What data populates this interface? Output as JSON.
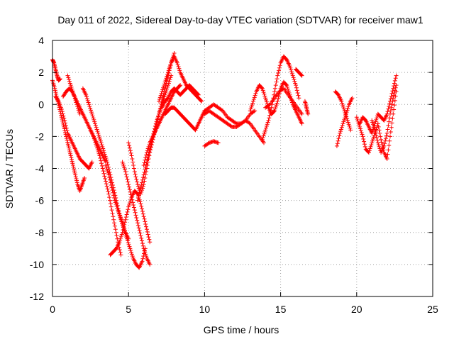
{
  "chart_data": {
    "type": "scatter",
    "title": "Day 011 of 2022, Sidereal Day-to-day VTEC variation (SDTVAR) for receiver maw1",
    "xlabel": "GPS time / hours",
    "ylabel": "SDTVAR / TECUs",
    "xlim": [
      0,
      25
    ],
    "ylim": [
      -12,
      4
    ],
    "grid": true,
    "grid_style": "dotted",
    "marker": "plus",
    "x_ticks": [
      0,
      5,
      10,
      15,
      20,
      25
    ],
    "x_tick_labels": [
      "0",
      "5",
      "10",
      "15",
      "20",
      "25"
    ],
    "y_ticks": [
      4,
      2,
      0,
      -2,
      -4,
      -6,
      -8,
      -10,
      -12
    ],
    "y_tick_labels": [
      "4",
      "2",
      "0",
      "-2",
      "-4",
      "-6",
      "-8",
      "-10",
      "-12"
    ],
    "series": [
      {
        "name": "SDTVAR",
        "color": "#ff0000",
        "tracks": [
          {
            "x": [
              0.0,
              0.1,
              0.2,
              0.3,
              0.4,
              0.5
            ],
            "y": [
              2.8,
              2.6,
              2.2,
              1.8,
              1.5,
              1.6
            ]
          },
          {
            "x": [
              0.0,
              0.15,
              0.3,
              0.45,
              0.6,
              0.75,
              0.9,
              1.05,
              1.2,
              1.35,
              1.5,
              1.65,
              1.8,
              1.95,
              2.1
            ],
            "y": [
              1.5,
              1.0,
              0.4,
              -0.2,
              -0.8,
              -1.4,
              -2.0,
              -2.6,
              -3.2,
              -3.8,
              -4.4,
              -5.0,
              -5.4,
              -5.0,
              -4.6
            ]
          },
          {
            "x": [
              0.2,
              0.4,
              0.6,
              0.8,
              1.0,
              1.2,
              1.4,
              1.6,
              1.8,
              2.0,
              2.2,
              2.4,
              2.6
            ],
            "y": [
              0.5,
              0.2,
              -0.3,
              -1.0,
              -1.8,
              -2.2,
              -2.6,
              -3.0,
              -3.4,
              -3.6,
              -3.8,
              -4.0,
              -3.6
            ]
          },
          {
            "x": [
              0.7,
              0.9,
              1.1,
              1.3,
              1.5,
              1.7,
              1.9,
              2.1,
              2.3,
              2.5,
              2.7,
              2.9,
              3.1,
              3.3,
              3.5
            ],
            "y": [
              0.5,
              0.8,
              1.0,
              0.8,
              0.4,
              0.0,
              -0.4,
              -0.8,
              -1.2,
              -1.6,
              -2.0,
              -2.4,
              -2.8,
              -3.2,
              -3.6
            ]
          },
          {
            "x": [
              1.0,
              1.2,
              1.4,
              1.6,
              1.8
            ],
            "y": [
              1.8,
              1.2,
              0.6,
              0.0,
              -0.6
            ]
          },
          {
            "x": [
              2.0,
              2.2,
              2.4,
              2.6,
              2.8,
              3.0,
              3.2,
              3.4,
              3.6,
              3.8,
              4.0,
              4.2,
              4.4,
              4.6,
              4.8,
              5.0
            ],
            "y": [
              1.0,
              0.6,
              0.0,
              -0.6,
              -1.2,
              -1.8,
              -2.4,
              -3.0,
              -3.6,
              -4.4,
              -5.2,
              -6.0,
              -6.8,
              -7.4,
              -8.0,
              -8.4
            ]
          },
          {
            "x": [
              2.5,
              2.7,
              2.9,
              3.1,
              3.3,
              3.5,
              3.7,
              3.9,
              4.1,
              4.3,
              4.5
            ],
            "y": [
              -1.6,
              -2.0,
              -2.6,
              -3.2,
              -4.0,
              -4.8,
              -5.6,
              -6.6,
              -7.6,
              -8.6,
              -9.4
            ]
          },
          {
            "x": [
              3.5,
              3.7,
              3.9,
              4.1,
              4.3,
              4.5,
              4.7,
              4.9,
              5.1,
              5.3,
              5.5,
              5.7,
              5.9,
              6.1
            ],
            "y": [
              -3.8,
              -4.4,
              -5.2,
              -6.0,
              -6.6,
              -7.2,
              -7.8,
              -8.4,
              -9.0,
              -9.6,
              -10.0,
              -10.2,
              -9.8,
              -9.0
            ]
          },
          {
            "x": [
              3.8,
              4.0,
              4.2,
              4.4,
              4.6,
              4.8,
              5.0,
              5.2,
              5.4,
              5.6,
              5.8,
              6.0,
              6.2,
              6.4
            ],
            "y": [
              -9.4,
              -9.2,
              -9.0,
              -8.6,
              -8.0,
              -7.2,
              -6.4,
              -5.8,
              -5.4,
              -5.6,
              -6.2,
              -7.0,
              -7.8,
              -8.6
            ]
          },
          {
            "x": [
              4.6,
              4.8,
              5.0,
              5.2,
              5.4,
              5.6,
              5.8,
              6.0,
              6.2,
              6.4
            ],
            "y": [
              -3.6,
              -4.2,
              -5.0,
              -5.8,
              -6.6,
              -7.4,
              -8.2,
              -9.0,
              -9.6,
              -10.0
            ]
          },
          {
            "x": [
              5.0,
              5.2,
              5.4,
              5.6,
              5.8,
              6.0,
              6.2,
              6.4,
              6.6,
              6.8,
              7.0,
              7.2,
              7.4,
              7.6,
              7.8,
              8.0
            ],
            "y": [
              -2.4,
              -3.2,
              -4.2,
              -5.0,
              -5.6,
              -5.0,
              -4.0,
              -3.0,
              -2.2,
              -1.4,
              -0.6,
              0.2,
              1.0,
              1.8,
              2.6,
              3.2
            ]
          },
          {
            "x": [
              5.6,
              5.8,
              6.0,
              6.2,
              6.4,
              6.6,
              6.8,
              7.0,
              7.2,
              7.4,
              7.6,
              7.8
            ],
            "y": [
              -6.0,
              -5.2,
              -4.4,
              -3.6,
              -2.8,
              -2.0,
              -1.2,
              -0.6,
              0.0,
              0.6,
              1.2,
              1.8
            ]
          },
          {
            "x": [
              6.0,
              6.2,
              6.4,
              6.6,
              6.8,
              7.0,
              7.2,
              7.4,
              7.6,
              7.8,
              8.0,
              8.2,
              8.4
            ],
            "y": [
              -3.8,
              -3.0,
              -2.4,
              -2.0,
              -1.6,
              -1.2,
              -0.8,
              -0.4,
              0.0,
              0.4,
              0.8,
              1.0,
              1.2
            ]
          },
          {
            "x": [
              7.0,
              7.2,
              7.4,
              7.6,
              7.8,
              8.0,
              8.2,
              8.4,
              8.6,
              8.8,
              9.0,
              9.2,
              9.4,
              9.6,
              9.8
            ],
            "y": [
              0.2,
              0.8,
              1.4,
              2.0,
              2.6,
              3.0,
              2.6,
              2.0,
              1.6,
              1.2,
              1.0,
              0.8,
              0.6,
              0.4,
              0.2
            ]
          },
          {
            "x": [
              7.2,
              7.4,
              7.6,
              7.8,
              8.0,
              8.2,
              8.4,
              8.6,
              8.8,
              9.0,
              9.2,
              9.4,
              9.6
            ],
            "y": [
              -0.2,
              0.2,
              0.4,
              0.8,
              1.0,
              0.8,
              0.6,
              0.8,
              1.0,
              1.2,
              1.0,
              0.8,
              0.6
            ]
          },
          {
            "x": [
              7.4,
              7.6,
              7.8,
              8.0,
              8.2,
              8.4,
              8.6,
              8.8,
              9.0,
              9.2,
              9.4,
              9.6,
              9.8,
              10.0
            ],
            "y": [
              -0.6,
              -0.4,
              -0.2,
              -0.2,
              -0.4,
              -0.6,
              -0.8,
              -1.0,
              -1.2,
              -1.4,
              -1.6,
              -1.2,
              -0.8,
              -0.4
            ]
          },
          {
            "x": [
              10.0,
              10.3,
              10.6,
              10.9,
              11.2,
              11.5,
              11.8,
              12.1,
              12.4,
              12.7,
              13.0,
              13.3
            ],
            "y": [
              -0.4,
              -0.2,
              0.0,
              -0.2,
              -0.4,
              -0.8,
              -1.0,
              -1.2,
              -1.2,
              -1.0,
              -0.6,
              -0.4
            ]
          },
          {
            "x": [
              10.0,
              10.3,
              10.6,
              10.9,
              11.2,
              11.5,
              11.8,
              12.1,
              12.4,
              12.7,
              13.0,
              13.3,
              13.6,
              13.9
            ],
            "y": [
              -0.6,
              -0.4,
              -0.6,
              -0.8,
              -1.0,
              -1.2,
              -1.4,
              -1.4,
              -1.2,
              -1.0,
              -1.2,
              -1.6,
              -2.0,
              -2.4
            ]
          },
          {
            "x": [
              10.0,
              10.3,
              10.6,
              10.9
            ],
            "y": [
              -2.6,
              -2.4,
              -2.3,
              -2.4
            ]
          },
          {
            "x": [
              13.0,
              13.2,
              13.4,
              13.6,
              13.8,
              14.0,
              14.2,
              14.4,
              14.6,
              14.8,
              15.0,
              15.2,
              15.4,
              15.6,
              15.8,
              16.0,
              16.2,
              16.4
            ],
            "y": [
              -0.4,
              0.2,
              0.8,
              1.2,
              1.0,
              0.4,
              -0.2,
              -0.6,
              -0.4,
              0.2,
              1.0,
              1.4,
              1.2,
              0.6,
              0.0,
              -0.4,
              -0.8,
              -1.2
            ]
          },
          {
            "x": [
              13.8,
              14.0,
              14.2,
              14.4,
              14.6,
              14.8,
              15.0,
              15.2,
              15.4,
              15.6,
              15.8,
              16.0,
              16.2
            ],
            "y": [
              -2.2,
              -1.6,
              -1.0,
              -0.2,
              0.8,
              1.8,
              2.6,
              3.0,
              2.8,
              2.4,
              1.8,
              1.2,
              0.4
            ]
          },
          {
            "x": [
              14.0,
              14.3,
              14.6,
              14.9,
              15.2,
              15.5,
              15.8,
              16.1,
              16.4
            ],
            "y": [
              -0.2,
              0.0,
              0.4,
              0.8,
              1.0,
              0.6,
              0.2,
              -0.2,
              -0.6
            ]
          },
          {
            "x": [
              16.0,
              16.2,
              16.4
            ],
            "y": [
              2.2,
              2.0,
              1.8
            ]
          },
          {
            "x": [
              16.6,
              16.7,
              16.8
            ],
            "y": [
              0.2,
              -0.2,
              -0.6
            ]
          },
          {
            "x": [
              18.6,
              18.8,
              19.0,
              19.2,
              19.4,
              19.6
            ],
            "y": [
              0.8,
              0.6,
              0.2,
              -0.4,
              -1.0,
              -1.6
            ]
          },
          {
            "x": [
              18.7,
              18.9,
              19.1,
              19.3,
              19.5,
              19.7
            ],
            "y": [
              -2.6,
              -1.8,
              -1.2,
              -0.6,
              0.0,
              0.4
            ]
          },
          {
            "x": [
              20.0,
              20.2,
              20.4,
              20.6,
              20.8,
              21.0,
              21.2,
              21.4,
              21.6,
              21.8,
              22.0,
              22.2,
              22.4,
              22.6
            ],
            "y": [
              -0.8,
              -1.4,
              -2.0,
              -2.8,
              -3.0,
              -2.4,
              -1.8,
              -1.2,
              -2.2,
              -3.0,
              -3.4,
              -2.0,
              -0.6,
              0.8
            ]
          },
          {
            "x": [
              20.2,
              20.4,
              20.6,
              20.8,
              21.0,
              21.2,
              21.4,
              21.6,
              21.8,
              22.0,
              22.2,
              22.4,
              22.6
            ],
            "y": [
              -1.2,
              -0.8,
              -1.0,
              -1.4,
              -1.8,
              -1.2,
              -0.6,
              -0.8,
              -1.0,
              -0.6,
              0.2,
              1.0,
              1.8
            ]
          },
          {
            "x": [
              21.0,
              21.2,
              21.4,
              21.6,
              21.8,
              22.0,
              22.2,
              22.4,
              22.6
            ],
            "y": [
              -1.0,
              -1.6,
              -2.4,
              -3.0,
              -2.6,
              -1.8,
              -0.6,
              0.4,
              1.2
            ]
          }
        ]
      }
    ]
  }
}
